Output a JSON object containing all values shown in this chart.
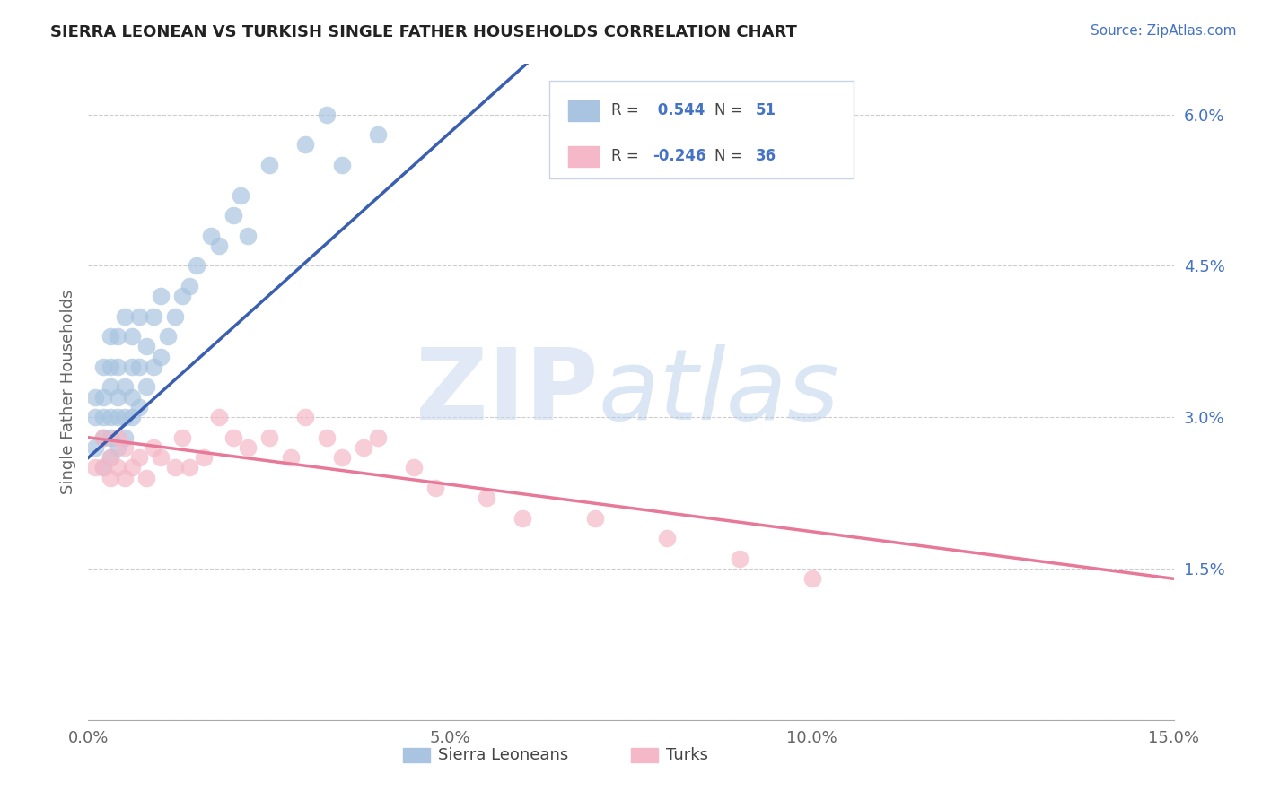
{
  "title": "SIERRA LEONEAN VS TURKISH SINGLE FATHER HOUSEHOLDS CORRELATION CHART",
  "source": "Source: ZipAtlas.com",
  "ylabel": "Single Father Households",
  "xlim": [
    0.0,
    0.15
  ],
  "ylim": [
    0.0,
    0.065
  ],
  "xticks": [
    0.0,
    0.05,
    0.1,
    0.15
  ],
  "xticklabels": [
    "0.0%",
    "5.0%",
    "10.0%",
    "15.0%"
  ],
  "yticks_right": [
    0.0,
    0.015,
    0.03,
    0.045,
    0.06
  ],
  "yticklabels_right": [
    "",
    "1.5%",
    "3.0%",
    "4.5%",
    "6.0%"
  ],
  "sierra_R": 0.544,
  "sierra_N": 51,
  "turk_R": -0.246,
  "turk_N": 36,
  "sierra_color": "#a8c4e0",
  "turk_color": "#f4b8c8",
  "sierra_line_color": "#3a5fb0",
  "turk_line_color": "#e87898",
  "legend_label_sierra": "Sierra Leoneans",
  "legend_label_turk": "Turks",
  "sierra_x": [
    0.001,
    0.001,
    0.001,
    0.002,
    0.002,
    0.002,
    0.002,
    0.002,
    0.003,
    0.003,
    0.003,
    0.003,
    0.003,
    0.003,
    0.004,
    0.004,
    0.004,
    0.004,
    0.004,
    0.005,
    0.005,
    0.005,
    0.005,
    0.006,
    0.006,
    0.006,
    0.006,
    0.007,
    0.007,
    0.007,
    0.008,
    0.008,
    0.009,
    0.009,
    0.01,
    0.01,
    0.011,
    0.012,
    0.013,
    0.014,
    0.015,
    0.017,
    0.018,
    0.02,
    0.021,
    0.022,
    0.025,
    0.03,
    0.033,
    0.035,
    0.04
  ],
  "sierra_y": [
    0.027,
    0.03,
    0.032,
    0.025,
    0.028,
    0.03,
    0.032,
    0.035,
    0.026,
    0.028,
    0.03,
    0.033,
    0.035,
    0.038,
    0.027,
    0.03,
    0.032,
    0.035,
    0.038,
    0.028,
    0.03,
    0.033,
    0.04,
    0.03,
    0.032,
    0.035,
    0.038,
    0.031,
    0.035,
    0.04,
    0.033,
    0.037,
    0.035,
    0.04,
    0.036,
    0.042,
    0.038,
    0.04,
    0.042,
    0.043,
    0.045,
    0.048,
    0.047,
    0.05,
    0.052,
    0.048,
    0.055,
    0.057,
    0.06,
    0.055,
    0.058
  ],
  "turk_x": [
    0.001,
    0.002,
    0.002,
    0.003,
    0.003,
    0.004,
    0.004,
    0.005,
    0.005,
    0.006,
    0.007,
    0.008,
    0.009,
    0.01,
    0.012,
    0.013,
    0.014,
    0.016,
    0.018,
    0.02,
    0.022,
    0.025,
    0.028,
    0.03,
    0.033,
    0.035,
    0.038,
    0.04,
    0.045,
    0.048,
    0.055,
    0.06,
    0.07,
    0.08,
    0.09,
    0.1
  ],
  "turk_y": [
    0.025,
    0.025,
    0.028,
    0.024,
    0.026,
    0.025,
    0.028,
    0.024,
    0.027,
    0.025,
    0.026,
    0.024,
    0.027,
    0.026,
    0.025,
    0.028,
    0.025,
    0.026,
    0.03,
    0.028,
    0.027,
    0.028,
    0.026,
    0.03,
    0.028,
    0.026,
    0.027,
    0.028,
    0.025,
    0.023,
    0.022,
    0.02,
    0.02,
    0.018,
    0.016,
    0.014
  ]
}
